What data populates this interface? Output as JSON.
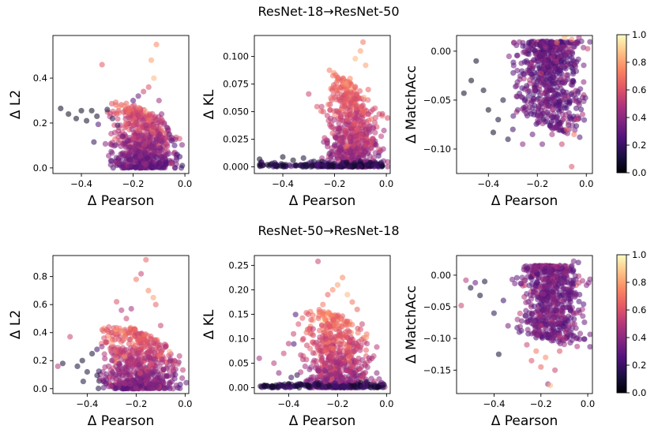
{
  "colormap": {
    "name": "magma",
    "stops": [
      "#000004",
      "#1c1044",
      "#4f127b",
      "#812581",
      "#b5367a",
      "#e55964",
      "#fb8761",
      "#fec287",
      "#fcfdbf"
    ],
    "ticks": [
      "0.0",
      "0.2",
      "0.4",
      "0.6",
      "0.8",
      "1.0"
    ],
    "range": [
      0,
      1
    ]
  },
  "chart_data": [
    {
      "type": "scatter",
      "row_title": "ResNet-18 → ResNet-50",
      "title_parts": [
        "ResNet-18",
        "→",
        "ResNet-50"
      ],
      "xlabel": "Δ Pearson",
      "ylabel": "Δ L2",
      "xlim": [
        -0.51,
        0.015
      ],
      "ylim": [
        -0.025,
        0.59
      ],
      "xticks": [
        -0.4,
        -0.2,
        0.0
      ],
      "xtick_labels": [
        "−0.4",
        "−0.2",
        "0.0"
      ],
      "yticks": [
        0.0,
        0.2,
        0.4
      ],
      "ytick_labels": [
        "0.0",
        "0.2",
        "0.4"
      ],
      "points": [
        [
          -0.48,
          0.265,
          0.05
        ],
        [
          -0.45,
          0.24,
          0.05
        ],
        [
          -0.42,
          0.22,
          0.05
        ],
        [
          -0.4,
          0.255,
          0.04
        ],
        [
          -0.38,
          0.21,
          0.06
        ],
        [
          -0.36,
          0.255,
          0.05
        ],
        [
          -0.34,
          0.23,
          0.07
        ],
        [
          -0.32,
          0.46,
          0.62
        ],
        [
          -0.3,
          0.26,
          0.1
        ],
        [
          -0.28,
          0.22,
          0.15
        ],
        [
          -0.26,
          0.19,
          0.2
        ],
        [
          -0.24,
          0.14,
          0.3
        ],
        [
          -0.22,
          0.12,
          0.35
        ],
        [
          -0.2,
          0.3,
          0.25
        ],
        [
          -0.18,
          0.32,
          0.3
        ],
        [
          -0.16,
          0.34,
          0.55
        ],
        [
          -0.14,
          0.36,
          0.6
        ],
        [
          -0.12,
          0.4,
          0.85
        ],
        [
          -0.11,
          0.55,
          0.75
        ],
        [
          -0.13,
          0.48,
          0.8
        ],
        [
          -0.1,
          0.3,
          0.45
        ],
        [
          -0.08,
          0.2,
          0.4
        ],
        [
          -0.06,
          0.15,
          0.3
        ],
        [
          -0.04,
          0.1,
          0.25
        ],
        [
          -0.02,
          0.05,
          0.2
        ],
        [
          -0.01,
          0.01,
          0.15
        ],
        [
          -0.03,
          0.06,
          0.25
        ],
        [
          -0.05,
          0.12,
          0.3
        ],
        [
          -0.07,
          0.18,
          0.35
        ],
        [
          -0.09,
          0.24,
          0.4
        ]
      ],
      "cloud": {
        "n": 650,
        "x_center": -0.16,
        "x_spread": 0.11,
        "y_top": 0.3,
        "y_bottom": 0.0,
        "c_base": 0.22
      }
    },
    {
      "type": "scatter",
      "xlabel": "Δ Pearson",
      "ylabel": "Δ KL",
      "xlim": [
        -0.51,
        0.015
      ],
      "ylim": [
        -0.006,
        0.119
      ],
      "xticks": [
        -0.4,
        -0.2,
        0.0
      ],
      "xtick_labels": [
        "−0.4",
        "−0.2",
        "0.0"
      ],
      "yticks": [
        0.0,
        0.025,
        0.05,
        0.075,
        0.1
      ],
      "ytick_labels": [
        "0.000",
        "0.025",
        "0.050",
        "0.075",
        "0.100"
      ],
      "points": [
        [
          -0.49,
          0.007,
          0.05
        ],
        [
          -0.46,
          0.002,
          0.05
        ],
        [
          -0.4,
          0.009,
          0.06
        ],
        [
          -0.36,
          0.006,
          0.05
        ],
        [
          -0.32,
          0.008,
          0.1
        ],
        [
          -0.3,
          0.066,
          0.55
        ],
        [
          -0.28,
          0.005,
          0.12
        ],
        [
          -0.24,
          0.004,
          0.2
        ],
        [
          -0.22,
          0.012,
          0.3
        ],
        [
          -0.2,
          0.02,
          0.35
        ],
        [
          -0.18,
          0.035,
          0.45
        ],
        [
          -0.16,
          0.055,
          0.6
        ],
        [
          -0.14,
          0.08,
          0.75
        ],
        [
          -0.12,
          0.098,
          0.85
        ],
        [
          -0.1,
          0.105,
          0.8
        ],
        [
          -0.09,
          0.113,
          0.7
        ],
        [
          -0.08,
          0.092,
          0.8
        ],
        [
          -0.07,
          0.07,
          0.65
        ],
        [
          -0.06,
          0.05,
          0.55
        ],
        [
          -0.05,
          0.035,
          0.45
        ],
        [
          -0.04,
          0.02,
          0.35
        ],
        [
          -0.03,
          0.01,
          0.25
        ],
        [
          -0.02,
          0.004,
          0.2
        ]
      ],
      "cloud": {
        "n": 650,
        "x_center": -0.13,
        "x_spread": 0.09,
        "y_top": 0.09,
        "y_bottom": 0.0,
        "c_base": 0.3
      }
    },
    {
      "type": "scatter",
      "xlabel": "Δ Pearson",
      "ylabel": "Δ MatchAcc",
      "xlim": [
        -0.53,
        0.025
      ],
      "ylim": [
        -0.125,
        0.016
      ],
      "xticks": [
        -0.4,
        -0.2,
        0.0
      ],
      "xtick_labels": [
        "−0.4",
        "−0.2",
        "0.0"
      ],
      "yticks": [
        0.0,
        -0.05,
        -0.1
      ],
      "ytick_labels": [
        "0.00",
        "−0.05",
        "−0.10"
      ],
      "points": [
        [
          -0.5,
          -0.043,
          0.05
        ],
        [
          -0.47,
          -0.03,
          0.05
        ],
        [
          -0.45,
          -0.01,
          0.05
        ],
        [
          -0.42,
          -0.04,
          0.06
        ],
        [
          -0.4,
          -0.06,
          0.05
        ],
        [
          -0.38,
          -0.083,
          0.05
        ],
        [
          -0.36,
          -0.07,
          0.08
        ],
        [
          -0.34,
          -0.05,
          0.1
        ],
        [
          -0.32,
          -0.09,
          0.12
        ],
        [
          -0.3,
          -0.08,
          0.2
        ],
        [
          -0.28,
          -0.06,
          0.3
        ],
        [
          -0.26,
          -0.095,
          0.4
        ],
        [
          -0.22,
          -0.085,
          0.3
        ],
        [
          -0.18,
          -0.095,
          0.35
        ],
        [
          -0.14,
          -0.085,
          0.45
        ],
        [
          -0.1,
          -0.095,
          0.55
        ],
        [
          -0.08,
          -0.08,
          0.65
        ],
        [
          -0.06,
          -0.118,
          0.6
        ],
        [
          -0.05,
          -0.085,
          0.7
        ],
        [
          -0.04,
          -0.07,
          0.55
        ],
        [
          -0.12,
          0.009,
          0.7
        ],
        [
          -0.09,
          0.014,
          0.85
        ],
        [
          -0.08,
          0.017,
          0.9
        ],
        [
          -0.06,
          0.012,
          0.75
        ],
        [
          -0.03,
          0.014,
          0.45
        ],
        [
          -0.02,
          0.01,
          0.3
        ]
      ],
      "cloud": {
        "n": 650,
        "x_center": -0.14,
        "x_spread": 0.12,
        "y_top": 0.01,
        "y_bottom": -0.09,
        "c_base": 0.22
      }
    },
    {
      "type": "scatter",
      "row_title": "ResNet-50 → ResNet-18",
      "title_parts": [
        "ResNet-50",
        "→",
        "ResNet-18"
      ],
      "xlabel": "Δ Pearson",
      "ylabel": "Δ L2",
      "xlim": [
        -0.54,
        0.015
      ],
      "ylim": [
        -0.035,
        0.95
      ],
      "xticks": [
        -0.4,
        -0.2,
        0.0
      ],
      "xtick_labels": [
        "−0.4",
        "−0.2",
        "0.0"
      ],
      "yticks": [
        0.0,
        0.2,
        0.4,
        0.6,
        0.8
      ],
      "ytick_labels": [
        "0.0",
        "0.2",
        "0.4",
        "0.6",
        "0.8"
      ],
      "points": [
        [
          -0.52,
          0.16,
          0.5
        ],
        [
          -0.5,
          0.18,
          0.1
        ],
        [
          -0.47,
          0.37,
          0.55
        ],
        [
          -0.44,
          0.16,
          0.1
        ],
        [
          -0.42,
          0.2,
          0.08
        ],
        [
          -0.4,
          0.12,
          0.1
        ],
        [
          -0.38,
          0.25,
          0.1
        ],
        [
          -0.36,
          0.28,
          0.2
        ],
        [
          -0.34,
          0.3,
          0.4
        ],
        [
          -0.32,
          0.42,
          0.6
        ],
        [
          -0.3,
          0.4,
          0.55
        ],
        [
          -0.28,
          0.62,
          0.6
        ],
        [
          -0.26,
          0.56,
          0.5
        ],
        [
          -0.24,
          0.5,
          0.55
        ],
        [
          -0.22,
          0.57,
          0.45
        ],
        [
          -0.2,
          0.78,
          0.7
        ],
        [
          -0.18,
          0.82,
          0.55
        ],
        [
          -0.16,
          0.92,
          0.65
        ],
        [
          -0.15,
          0.7,
          0.75
        ],
        [
          -0.13,
          0.65,
          0.8
        ],
        [
          -0.12,
          0.6,
          0.65
        ],
        [
          -0.1,
          0.45,
          0.55
        ],
        [
          -0.08,
          0.3,
          0.45
        ],
        [
          -0.06,
          0.2,
          0.4
        ],
        [
          -0.04,
          0.1,
          0.3
        ],
        [
          -0.02,
          0.03,
          0.25
        ]
      ],
      "cloud": {
        "n": 650,
        "x_center": -0.19,
        "x_spread": 0.13,
        "y_top": 0.45,
        "y_bottom": 0.0,
        "c_base": 0.25
      }
    },
    {
      "type": "scatter",
      "xlabel": "Δ Pearson",
      "ylabel": "Δ KL",
      "xlim": [
        -0.54,
        0.015
      ],
      "ylim": [
        -0.012,
        0.27
      ],
      "xticks": [
        -0.4,
        -0.2,
        0.0
      ],
      "xtick_labels": [
        "−0.4",
        "−0.2",
        "0.0"
      ],
      "yticks": [
        0.0,
        0.05,
        0.1,
        0.15,
        0.2,
        0.25
      ],
      "ytick_labels": [
        "0.00",
        "0.05",
        "0.10",
        "0.15",
        "0.20",
        "0.25"
      ],
      "points": [
        [
          -0.52,
          0.06,
          0.45
        ],
        [
          -0.5,
          0.005,
          0.05
        ],
        [
          -0.46,
          0.05,
          0.5
        ],
        [
          -0.44,
          0.03,
          0.4
        ],
        [
          -0.42,
          0.07,
          0.55
        ],
        [
          -0.4,
          0.09,
          0.5
        ],
        [
          -0.38,
          0.11,
          0.55
        ],
        [
          -0.36,
          0.13,
          0.6
        ],
        [
          -0.34,
          0.1,
          0.55
        ],
        [
          -0.32,
          0.15,
          0.6
        ],
        [
          -0.3,
          0.12,
          0.5
        ],
        [
          -0.28,
          0.258,
          0.55
        ],
        [
          -0.26,
          0.17,
          0.7
        ],
        [
          -0.24,
          0.19,
          0.65
        ],
        [
          -0.22,
          0.2,
          0.75
        ],
        [
          -0.2,
          0.21,
          0.8
        ],
        [
          -0.18,
          0.225,
          0.75
        ],
        [
          -0.16,
          0.19,
          0.85
        ],
        [
          -0.14,
          0.175,
          0.7
        ],
        [
          -0.12,
          0.16,
          0.65
        ],
        [
          -0.1,
          0.13,
          0.55
        ],
        [
          -0.08,
          0.09,
          0.5
        ],
        [
          -0.06,
          0.06,
          0.45
        ],
        [
          -0.04,
          0.03,
          0.4
        ],
        [
          -0.02,
          0.01,
          0.3
        ]
      ],
      "cloud": {
        "n": 650,
        "x_center": -0.2,
        "x_spread": 0.12,
        "y_top": 0.16,
        "y_bottom": 0.0,
        "c_base": 0.3
      }
    },
    {
      "type": "scatter",
      "xlabel": "Δ Pearson",
      "ylabel": "Δ MatchAcc",
      "xlim": [
        -0.56,
        0.02
      ],
      "ylim": [
        -0.187,
        0.031
      ],
      "xticks": [
        -0.4,
        -0.2,
        0.0
      ],
      "xtick_labels": [
        "−0.4",
        "−0.2",
        "0.0"
      ],
      "yticks": [
        0.0,
        -0.05,
        -0.1,
        -0.15
      ],
      "ytick_labels": [
        "0.00",
        "−0.05",
        "−0.10",
        "−0.15"
      ],
      "points": [
        [
          -0.54,
          -0.048,
          0.55
        ],
        [
          -0.52,
          -0.008,
          0.5
        ],
        [
          -0.5,
          -0.02,
          0.1
        ],
        [
          -0.48,
          -0.012,
          0.3
        ],
        [
          -0.46,
          -0.032,
          0.08
        ],
        [
          -0.44,
          -0.01,
          0.1
        ],
        [
          -0.4,
          -0.06,
          0.15
        ],
        [
          -0.38,
          -0.125,
          0.08
        ],
        [
          -0.36,
          -0.04,
          0.2
        ],
        [
          -0.34,
          -0.08,
          0.35
        ],
        [
          -0.3,
          -0.07,
          0.45
        ],
        [
          -0.26,
          -0.11,
          0.55
        ],
        [
          -0.24,
          -0.135,
          0.6
        ],
        [
          -0.22,
          -0.12,
          0.7
        ],
        [
          -0.2,
          -0.145,
          0.65
        ],
        [
          -0.18,
          -0.13,
          0.75
        ],
        [
          -0.17,
          -0.172,
          0.4
        ],
        [
          -0.16,
          -0.174,
          0.85
        ],
        [
          -0.14,
          -0.15,
          0.55
        ],
        [
          -0.12,
          -0.12,
          0.6
        ],
        [
          -0.1,
          -0.1,
          0.5
        ],
        [
          -0.08,
          -0.08,
          0.45
        ],
        [
          -0.06,
          0.022,
          0.35
        ],
        [
          -0.04,
          0.02,
          0.25
        ]
      ],
      "cloud": {
        "n": 650,
        "x_center": -0.15,
        "x_spread": 0.12,
        "y_top": 0.015,
        "y_bottom": -0.12,
        "c_base": 0.25
      }
    }
  ]
}
